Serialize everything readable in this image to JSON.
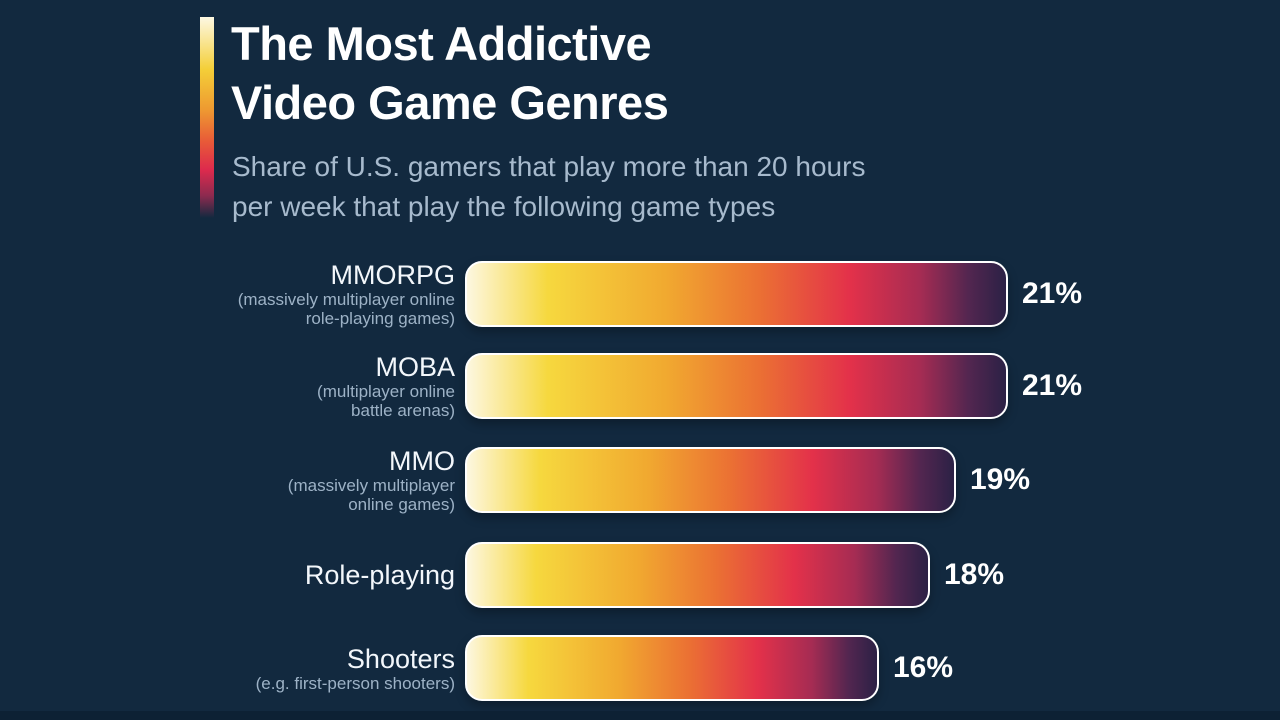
{
  "header": {
    "title_line1": "The Most Addictive",
    "title_line2": "Video Game Genres",
    "subtitle_line1": "Share of U.S. gamers that play more than 20 hours",
    "subtitle_line2": "per week that play the following game types"
  },
  "colors": {
    "background": "#12293f",
    "bottom_band": "#0d2134",
    "title_text": "#ffffff",
    "subtitle_text": "#a7bacd",
    "label_text": "#f3f7fb",
    "sublabel_text": "#9db2c6",
    "value_text": "#ffffff",
    "bar_border": "#ffffff",
    "bar_gradient": [
      "#fdf7e0",
      "#f6d83e",
      "#f1a930",
      "#eb7133",
      "#e3314a",
      "#a62c53",
      "#2b2145"
    ],
    "stripe_gradient": [
      "#fdf8e3",
      "#f4cf38",
      "#ee9a31",
      "#dd2a4d",
      "#12293f"
    ]
  },
  "chart_data": {
    "type": "bar",
    "orientation": "horizontal",
    "title": "The Most Addictive Video Game Genres",
    "subtitle": "Share of U.S. gamers that play more than 20 hours per week that play the following game types",
    "unit": "%",
    "xlim": [
      0,
      21
    ],
    "grid": false,
    "legend": "none",
    "categories": [
      "MMORPG",
      "MOBA",
      "MMO",
      "Role-playing",
      "Shooters"
    ],
    "values": [
      21,
      21,
      19,
      18,
      16
    ],
    "bars": [
      {
        "label": "MMORPG",
        "sublabel_lines": [
          "(massively multiplayer online",
          "role-playing games)"
        ],
        "value": 21,
        "value_display": "21%"
      },
      {
        "label": "MOBA",
        "sublabel_lines": [
          "(multiplayer online",
          "battle arenas)"
        ],
        "value": 21,
        "value_display": "21%"
      },
      {
        "label": "MMO",
        "sublabel_lines": [
          "(massively multiplayer",
          "online games)"
        ],
        "value": 19,
        "value_display": "19%"
      },
      {
        "label": "Role-playing",
        "sublabel_lines": [],
        "value": 18,
        "value_display": "18%"
      },
      {
        "label": "Shooters",
        "sublabel_lines": [
          "(e.g. first-person shooters)"
        ],
        "value": 16,
        "value_display": "16%"
      }
    ]
  }
}
